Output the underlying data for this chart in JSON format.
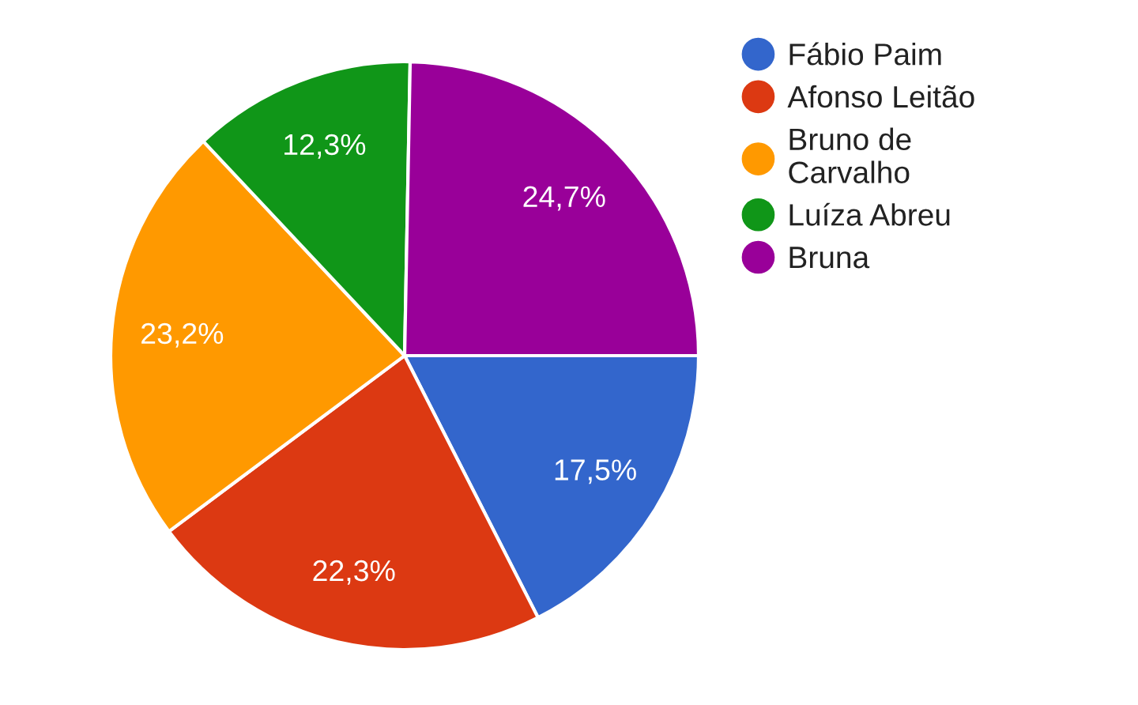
{
  "chart_data": {
    "type": "pie",
    "categories": [
      "Fábio Paim",
      "Afonso Leitão",
      "Bruno de\nCarvalho",
      "Luíza Abreu",
      "Bruna"
    ],
    "values": [
      17.5,
      22.3,
      23.2,
      12.3,
      24.7
    ],
    "value_labels": [
      "17,5%",
      "22,3%",
      "23,2%",
      "12,3%",
      "24,7%"
    ],
    "colors": [
      "#3366cc",
      "#dc3912",
      "#ff9900",
      "#109618",
      "#990099"
    ],
    "legend": "right"
  }
}
